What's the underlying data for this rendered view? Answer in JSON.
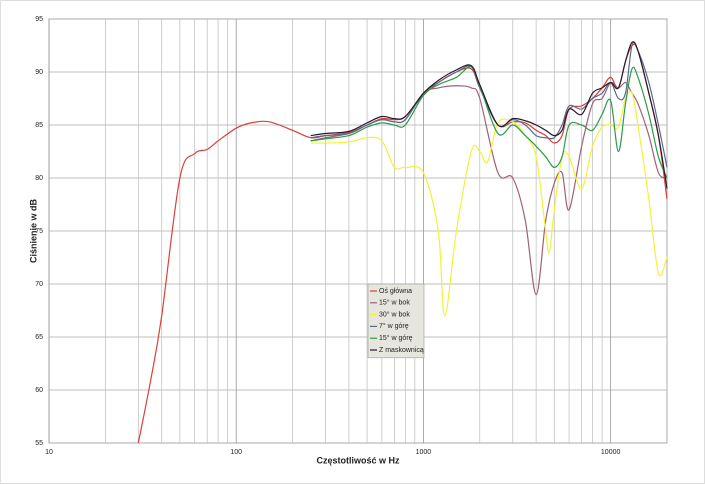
{
  "chart_data": {
    "type": "line",
    "log_x": true,
    "grid": true,
    "xlabel": "Częstotliwość w Hz",
    "ylabel": "Ciśnienie w dB",
    "xlim": [
      10,
      20000
    ],
    "ylim": [
      55,
      95
    ],
    "xticks": [
      10,
      100,
      1000,
      10000
    ],
    "xminor": [
      20,
      30,
      40,
      50,
      60,
      70,
      80,
      90,
      200,
      300,
      400,
      500,
      600,
      700,
      800,
      900,
      2000,
      3000,
      4000,
      5000,
      6000,
      7000,
      8000,
      9000
    ],
    "yticks": [
      55,
      60,
      65,
      70,
      75,
      80,
      85,
      90,
      95
    ],
    "series": [
      {
        "name": "Oś główna",
        "color": "#d9403a",
        "x": [
          30,
          35,
          40,
          50,
          60,
          70,
          80,
          100,
          120,
          150,
          200,
          250,
          300,
          400,
          500,
          600,
          700,
          800,
          1000,
          1200,
          1500,
          1800,
          2000,
          2500,
          3000,
          3500,
          4000,
          4500,
          5000,
          5500,
          6000,
          7000,
          8000,
          9000,
          10000,
          11000,
          12000,
          13000,
          14000,
          16000,
          18000,
          20000
        ],
        "values": [
          55,
          61,
          67,
          80,
          82.3,
          82.7,
          83.5,
          84.7,
          85.2,
          85.3,
          84.5,
          83.8,
          84,
          84.3,
          85,
          85.6,
          85.5,
          85.8,
          87.8,
          89,
          90,
          90.3,
          88.5,
          85,
          85.3,
          85.2,
          84.5,
          84,
          83.3,
          84,
          86.5,
          86.8,
          87.5,
          88.5,
          89.5,
          88.5,
          91,
          92.5,
          92,
          88,
          84,
          78
        ]
      },
      {
        "name": "15° w bok",
        "color": "#a0607a",
        "x": [
          250,
          300,
          400,
          500,
          600,
          700,
          800,
          1000,
          1200,
          1500,
          1800,
          2000,
          2500,
          3000,
          3500,
          4000,
          4500,
          5000,
          5500,
          6000,
          7000,
          8000,
          9000,
          10000,
          11000,
          12000,
          13000,
          14000,
          16000,
          18000,
          20000
        ],
        "values": [
          83.5,
          83.8,
          84.2,
          85,
          85.5,
          85.3,
          85.5,
          88,
          88.5,
          88.7,
          88.5,
          87.5,
          80.5,
          80,
          76,
          69,
          76,
          79.5,
          80.5,
          77,
          83,
          87,
          87.5,
          89,
          88.5,
          89,
          88,
          87,
          84,
          80.5,
          80
        ]
      },
      {
        "name": "30° w bok",
        "color": "#f2f23a",
        "x": [
          250,
          300,
          400,
          500,
          600,
          700,
          800,
          1000,
          1200,
          1300,
          1500,
          1800,
          2000,
          2200,
          2500,
          3000,
          3500,
          4000,
          4500,
          4700,
          5000,
          5500,
          6000,
          7000,
          8000,
          9000,
          10000,
          11000,
          12000,
          13000,
          14000,
          16000,
          18000,
          20000
        ],
        "values": [
          83.3,
          83.3,
          83.4,
          83.8,
          83.5,
          81,
          81,
          80.5,
          75,
          67,
          75,
          82.5,
          82.5,
          81.5,
          85.2,
          85.3,
          84,
          82,
          75,
          73,
          77,
          82,
          82,
          79,
          83,
          84.8,
          85,
          84.8,
          87.5,
          88,
          85,
          78,
          71,
          72.5
        ]
      },
      {
        "name": "7° w górę",
        "color": "#5a6a8a",
        "x": [
          250,
          300,
          400,
          500,
          600,
          700,
          800,
          1000,
          1200,
          1500,
          1800,
          2000,
          2500,
          3000,
          3500,
          4000,
          4500,
          5000,
          5500,
          6000,
          7000,
          8000,
          9000,
          10000,
          11000,
          12000,
          13000,
          14000,
          16000,
          18000,
          20000
        ],
        "values": [
          83.8,
          84,
          84.2,
          85,
          85.5,
          85.3,
          85.5,
          88,
          89,
          90,
          90.5,
          88.5,
          85,
          85.5,
          85,
          84,
          83.8,
          83.8,
          85,
          86.8,
          86.5,
          87.5,
          88,
          89,
          87.5,
          88,
          92.5,
          92,
          89,
          85,
          81
        ]
      },
      {
        "name": "15° w górę",
        "color": "#2e9a4a",
        "x": [
          250,
          300,
          400,
          500,
          600,
          700,
          800,
          1000,
          1200,
          1500,
          1800,
          2000,
          2500,
          3000,
          3500,
          4000,
          4500,
          5000,
          5500,
          6000,
          7000,
          8000,
          9000,
          10000,
          11000,
          12000,
          13000,
          14000,
          16000,
          18000,
          20000
        ],
        "values": [
          83.5,
          83.7,
          84,
          84.8,
          85.2,
          85,
          85,
          87.8,
          88.8,
          89.5,
          90.5,
          88.7,
          84.2,
          85,
          84,
          83,
          82,
          81,
          82,
          85,
          85,
          84.5,
          86,
          87.3,
          82.5,
          87,
          90.3,
          89.5,
          86,
          82,
          80
        ]
      },
      {
        "name": "Z maskownicą",
        "color": "#2a1a2a",
        "x": [
          250,
          300,
          400,
          500,
          600,
          700,
          800,
          1000,
          1200,
          1500,
          1800,
          2000,
          2500,
          3000,
          3500,
          4000,
          4500,
          5000,
          5500,
          6000,
          7000,
          8000,
          9000,
          10000,
          11000,
          12000,
          13000,
          14000,
          16000,
          18000,
          20000
        ],
        "values": [
          84,
          84.2,
          84.4,
          85.2,
          85.8,
          85.6,
          85.8,
          88,
          89.2,
          90.2,
          90.6,
          88.8,
          85,
          85.6,
          85.4,
          85,
          84.5,
          84,
          84.5,
          86.5,
          86,
          88,
          88.5,
          89,
          88.5,
          91,
          92.8,
          92,
          88,
          84,
          79
        ]
      }
    ]
  }
}
